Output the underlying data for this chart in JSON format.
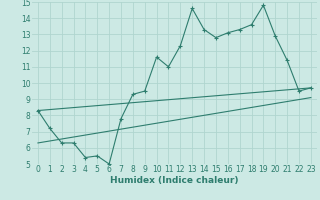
{
  "xlabel": "Humidex (Indice chaleur)",
  "xlim": [
    -0.5,
    23.5
  ],
  "ylim": [
    5,
    15
  ],
  "xticks": [
    0,
    1,
    2,
    3,
    4,
    5,
    6,
    7,
    8,
    9,
    10,
    11,
    12,
    13,
    14,
    15,
    16,
    17,
    18,
    19,
    20,
    21,
    22,
    23
  ],
  "yticks": [
    5,
    6,
    7,
    8,
    9,
    10,
    11,
    12,
    13,
    14,
    15
  ],
  "bg_color": "#cce9e4",
  "line_color": "#2e7d6e",
  "grid_color": "#b0d5cf",
  "line1_x": [
    0,
    1,
    2,
    3,
    4,
    5,
    6,
    7,
    8,
    9,
    10,
    11,
    12,
    13,
    14,
    15,
    16,
    17,
    18,
    19,
    20,
    21,
    22,
    23
  ],
  "line1_y": [
    8.3,
    7.2,
    6.3,
    6.3,
    5.4,
    5.5,
    5.0,
    7.8,
    9.3,
    9.5,
    11.6,
    11.0,
    12.3,
    14.6,
    13.3,
    12.8,
    13.1,
    13.3,
    13.6,
    14.8,
    12.9,
    11.4,
    9.5,
    9.7
  ],
  "line2_x": [
    0,
    23
  ],
  "line2_y": [
    8.3,
    9.7
  ],
  "line3_x": [
    0,
    23
  ],
  "line3_y": [
    6.3,
    9.1
  ],
  "font_color": "#2e7d6e",
  "tick_fontsize": 5.5,
  "label_fontsize": 6.5
}
